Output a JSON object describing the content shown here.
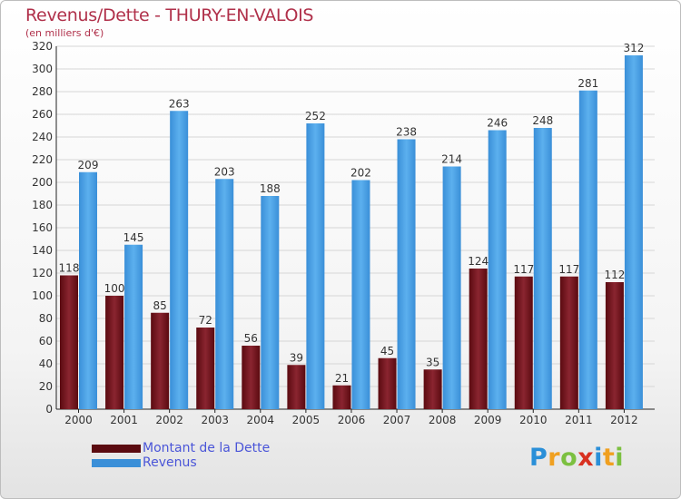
{
  "chart_data": {
    "type": "bar",
    "title": "Revenus/Dette - THURY-EN-VALOIS",
    "subtitle": "(en milliers d'€)",
    "categories": [
      "2000",
      "2001",
      "2002",
      "2003",
      "2004",
      "2005",
      "2006",
      "2007",
      "2008",
      "2009",
      "2010",
      "2011",
      "2012"
    ],
    "series": [
      {
        "name": "Montant de la Dette",
        "color": "#7a1820",
        "values": [
          118,
          100,
          85,
          72,
          56,
          39,
          21,
          45,
          35,
          124,
          117,
          117,
          112
        ]
      },
      {
        "name": "Revenus",
        "color": "#4a9de0",
        "values": [
          209,
          145,
          263,
          203,
          188,
          252,
          202,
          238,
          214,
          246,
          248,
          281,
          312
        ]
      }
    ],
    "ylim": [
      0,
      320
    ],
    "yticks": [
      0,
      20,
      40,
      60,
      80,
      100,
      120,
      140,
      160,
      180,
      200,
      220,
      240,
      260,
      280,
      300,
      320
    ],
    "grid": true,
    "legend_position": "bottom-left"
  },
  "logo": {
    "letters": [
      "P",
      "r",
      "o",
      "x",
      "i",
      "t",
      "i"
    ],
    "colors": [
      "#2a8fd8",
      "#f0a020",
      "#7cc040",
      "#d83020",
      "#2a8fd8",
      "#f0a020",
      "#7cc040"
    ]
  }
}
